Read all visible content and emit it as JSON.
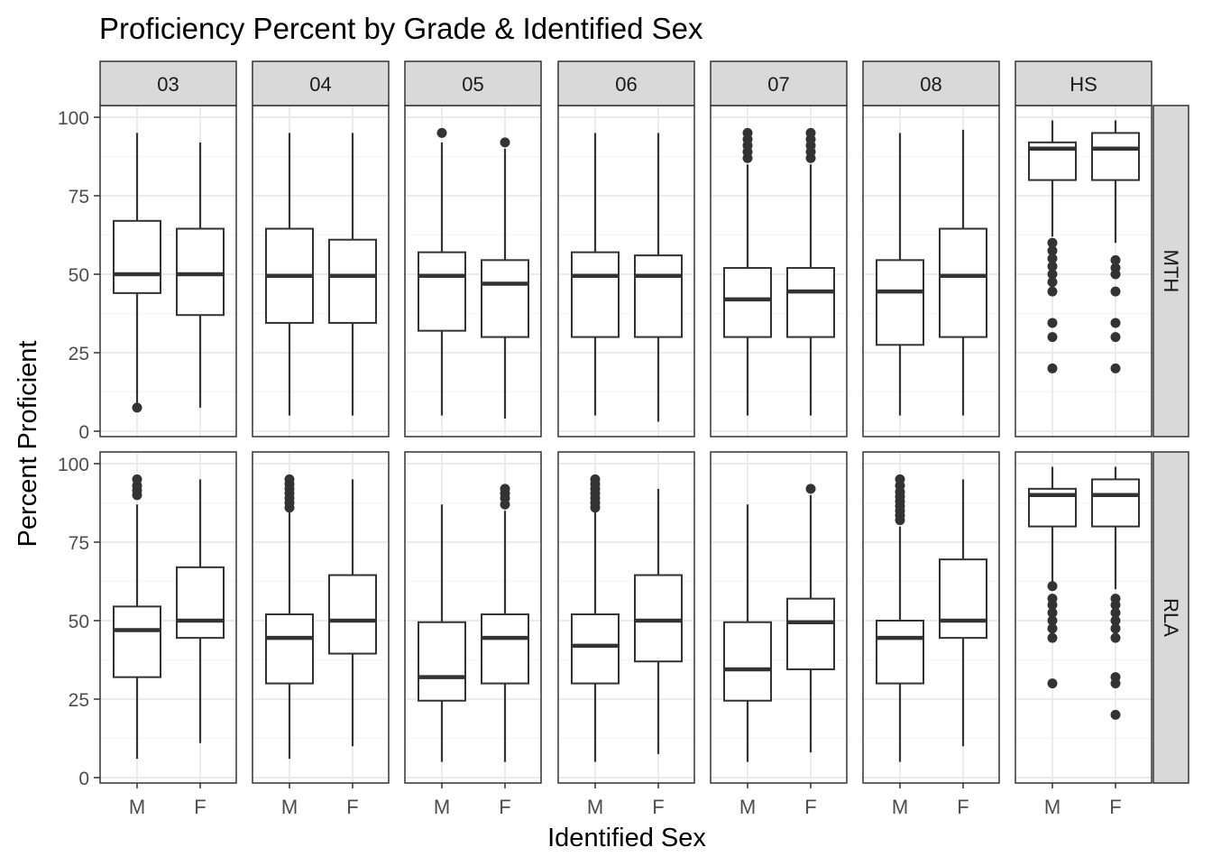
{
  "chart_data": {
    "type": "boxplot",
    "title": "Proficiency Percent by Grade & Identified Sex",
    "xlabel": "Identified Sex",
    "ylabel": "Percent Proficient",
    "grid": true,
    "theme": "bw",
    "facet_columns": [
      "03",
      "04",
      "05",
      "06",
      "07",
      "08",
      "HS"
    ],
    "facet_rows": [
      "MTH",
      "RLA"
    ],
    "x_categories": [
      "M",
      "F"
    ],
    "ylim": [
      0,
      100
    ],
    "y_ticks": [
      0,
      25,
      50,
      75,
      100
    ],
    "colors": {
      "panel_border": "#333333",
      "strip_fill": "#d9d9d9",
      "grid_major": "#ebebeb",
      "grid_minor": "#f5f5f5",
      "box_line": "#333333",
      "box_fill": "#ffffff",
      "outlier": "#333333"
    },
    "panels": [
      {
        "row": "MTH",
        "col": "03",
        "boxes": [
          {
            "x": "M",
            "low": 7.5,
            "q1": 44,
            "median": 50,
            "q3": 67,
            "high": 95,
            "outliers": [
              7.5
            ]
          },
          {
            "x": "F",
            "low": 7.5,
            "q1": 37,
            "median": 50,
            "q3": 64.5,
            "high": 92,
            "outliers": []
          }
        ]
      },
      {
        "row": "MTH",
        "col": "04",
        "boxes": [
          {
            "x": "M",
            "low": 5,
            "q1": 34.5,
            "median": 49.5,
            "q3": 64.5,
            "high": 95,
            "outliers": []
          },
          {
            "x": "F",
            "low": 5,
            "q1": 34.5,
            "median": 49.5,
            "q3": 61,
            "high": 95,
            "outliers": []
          }
        ]
      },
      {
        "row": "MTH",
        "col": "05",
        "boxes": [
          {
            "x": "M",
            "low": 5,
            "q1": 32,
            "median": 49.5,
            "q3": 57,
            "high": 92,
            "outliers": [
              95
            ]
          },
          {
            "x": "F",
            "low": 4,
            "q1": 30,
            "median": 47,
            "q3": 54.5,
            "high": 90,
            "outliers": [
              92
            ]
          }
        ]
      },
      {
        "row": "MTH",
        "col": "06",
        "boxes": [
          {
            "x": "M",
            "low": 5,
            "q1": 30,
            "median": 49.5,
            "q3": 57,
            "high": 95,
            "outliers": []
          },
          {
            "x": "F",
            "low": 3,
            "q1": 30,
            "median": 49.5,
            "q3": 56,
            "high": 95,
            "outliers": []
          }
        ]
      },
      {
        "row": "MTH",
        "col": "07",
        "boxes": [
          {
            "x": "M",
            "low": 5,
            "q1": 30,
            "median": 42,
            "q3": 52,
            "high": 85,
            "outliers": [
              87,
              89,
              91,
              93,
              95
            ]
          },
          {
            "x": "F",
            "low": 5,
            "q1": 30,
            "median": 44.5,
            "q3": 52,
            "high": 85,
            "outliers": [
              87,
              89,
              91,
              93,
              95
            ]
          }
        ]
      },
      {
        "row": "MTH",
        "col": "08",
        "boxes": [
          {
            "x": "M",
            "low": 5,
            "q1": 27.5,
            "median": 44.5,
            "q3": 54.5,
            "high": 95,
            "outliers": []
          },
          {
            "x": "F",
            "low": 5,
            "q1": 30,
            "median": 49.5,
            "q3": 64.5,
            "high": 96,
            "outliers": []
          }
        ]
      },
      {
        "row": "MTH",
        "col": "HS",
        "boxes": [
          {
            "x": "M",
            "low": 62,
            "q1": 80,
            "median": 90,
            "q3": 92,
            "high": 99,
            "outliers": [
              60,
              57.5,
              55,
              52.5,
              50,
              47.5,
              44.5,
              34.5,
              30,
              20
            ]
          },
          {
            "x": "F",
            "low": 60,
            "q1": 80,
            "median": 90,
            "q3": 95,
            "high": 99,
            "outliers": [
              54.5,
              52,
              50,
              44.5,
              34.5,
              30,
              20
            ]
          }
        ]
      },
      {
        "row": "RLA",
        "col": "03",
        "boxes": [
          {
            "x": "M",
            "low": 6,
            "q1": 32,
            "median": 47,
            "q3": 54.5,
            "high": 87,
            "outliers": [
              90,
              91.5,
              93,
              95
            ]
          },
          {
            "x": "F",
            "low": 11,
            "q1": 44.5,
            "median": 50,
            "q3": 67,
            "high": 95,
            "outliers": []
          }
        ]
      },
      {
        "row": "RLA",
        "col": "04",
        "boxes": [
          {
            "x": "M",
            "low": 6,
            "q1": 30,
            "median": 44.5,
            "q3": 52,
            "high": 85,
            "outliers": [
              86,
              87.5,
              89,
              90.5,
              92,
              93.5,
              95
            ]
          },
          {
            "x": "F",
            "low": 10,
            "q1": 39.5,
            "median": 50,
            "q3": 64.5,
            "high": 95,
            "outliers": []
          }
        ]
      },
      {
        "row": "RLA",
        "col": "05",
        "boxes": [
          {
            "x": "M",
            "low": 5,
            "q1": 24.5,
            "median": 32,
            "q3": 49.5,
            "high": 87,
            "outliers": []
          },
          {
            "x": "F",
            "low": 5,
            "q1": 30,
            "median": 44.5,
            "q3": 52,
            "high": 85,
            "outliers": [
              87,
              89,
              90.5,
              92
            ]
          }
        ]
      },
      {
        "row": "RLA",
        "col": "06",
        "boxes": [
          {
            "x": "M",
            "low": 5,
            "q1": 30,
            "median": 42,
            "q3": 52,
            "high": 85,
            "outliers": [
              86,
              87.5,
              89,
              90.5,
              92,
              93.5,
              95
            ]
          },
          {
            "x": "F",
            "low": 7.5,
            "q1": 37,
            "median": 50,
            "q3": 64.5,
            "high": 92,
            "outliers": []
          }
        ]
      },
      {
        "row": "RLA",
        "col": "07",
        "boxes": [
          {
            "x": "M",
            "low": 5,
            "q1": 24.5,
            "median": 34.5,
            "q3": 49.5,
            "high": 87,
            "outliers": []
          },
          {
            "x": "F",
            "low": 8,
            "q1": 34.5,
            "median": 49.5,
            "q3": 57,
            "high": 90,
            "outliers": [
              92
            ]
          }
        ]
      },
      {
        "row": "RLA",
        "col": "08",
        "boxes": [
          {
            "x": "M",
            "low": 5,
            "q1": 30,
            "median": 44.5,
            "q3": 50,
            "high": 80,
            "outliers": [
              82,
              83.5,
              85,
              86.5,
              88,
              89.5,
              91,
              93,
              95
            ]
          },
          {
            "x": "F",
            "low": 10,
            "q1": 44.5,
            "median": 50,
            "q3": 69.5,
            "high": 95,
            "outliers": []
          }
        ]
      },
      {
        "row": "RLA",
        "col": "HS",
        "boxes": [
          {
            "x": "M",
            "low": 62,
            "q1": 80,
            "median": 90,
            "q3": 92,
            "high": 99,
            "outliers": [
              61,
              57,
              55,
              52.5,
              50,
              47.5,
              44.5,
              30
            ]
          },
          {
            "x": "F",
            "low": 60,
            "q1": 80,
            "median": 90,
            "q3": 95,
            "high": 99,
            "outliers": [
              57,
              55,
              52.5,
              50,
              47.5,
              44.5,
              32,
              30,
              20
            ]
          }
        ]
      }
    ]
  }
}
